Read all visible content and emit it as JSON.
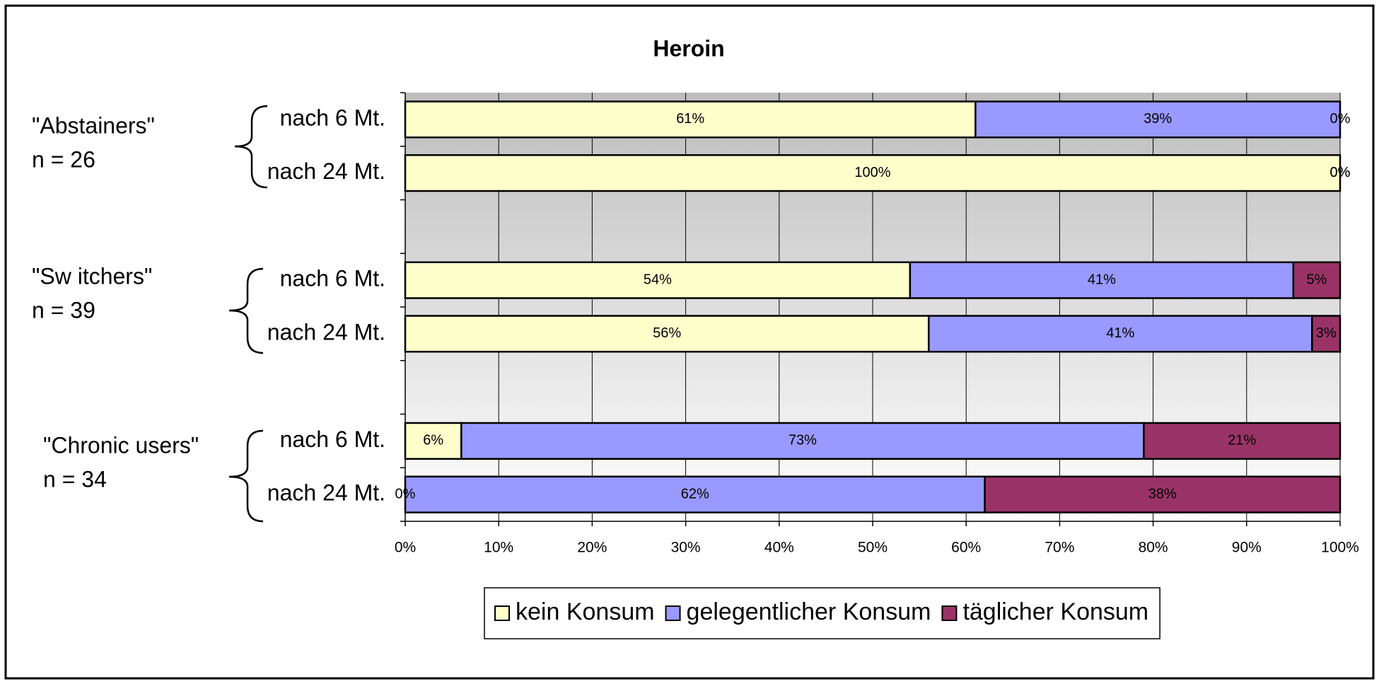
{
  "chart_data": {
    "type": "stacked_barh",
    "title": "Heroin",
    "categories": [
      "nach 6 Mt.",
      "nach 24 Mt.",
      null,
      "nach 6 Mt.",
      "nach 24 Mt.",
      null,
      "nach 6 Mt.",
      "nach 24 Mt."
    ],
    "groups": [
      {
        "name": "\"Abstainers\"",
        "n": "n = 26"
      },
      {
        "name": "\"Sw itchers\"",
        "n": "n = 39"
      },
      {
        "name": "\"Chronic users\"",
        "n": "n = 34"
      }
    ],
    "series": [
      {
        "name": "kein Konsum",
        "color": "#FFFFCC",
        "values": [
          61,
          100,
          null,
          54,
          56,
          null,
          6,
          0
        ],
        "value_labels": [
          "61%",
          "100%",
          null,
          "54%",
          "56%",
          null,
          "6%",
          "0%"
        ]
      },
      {
        "name": "gelegentlicher Konsum",
        "color": "#9999FF",
        "values": [
          39,
          0,
          null,
          41,
          41,
          null,
          73,
          62
        ],
        "value_labels": [
          "39%",
          "0%",
          null,
          "41%",
          "41%",
          null,
          "73%",
          "62%"
        ]
      },
      {
        "name": "täglicher Konsum",
        "color": "#993366",
        "values": [
          0,
          0,
          null,
          5,
          3,
          null,
          21,
          38
        ],
        "value_labels": [
          "0%",
          "0%",
          null,
          "5%",
          "3%",
          null,
          "21%",
          "38%"
        ]
      }
    ],
    "xlim": [
      0,
      100
    ],
    "xticks": [
      {
        "value": 0,
        "label": "0%"
      },
      {
        "value": 10,
        "label": "10%"
      },
      {
        "value": 20,
        "label": "20%"
      },
      {
        "value": 30,
        "label": "30%"
      },
      {
        "value": 40,
        "label": "40%"
      },
      {
        "value": 50,
        "label": "50%"
      },
      {
        "value": 60,
        "label": "60%"
      },
      {
        "value": 70,
        "label": "70%"
      },
      {
        "value": 80,
        "label": "80%"
      },
      {
        "value": 90,
        "label": "90%"
      },
      {
        "value": 100,
        "label": "100%"
      }
    ],
    "grid": true,
    "legend": "bottom"
  }
}
